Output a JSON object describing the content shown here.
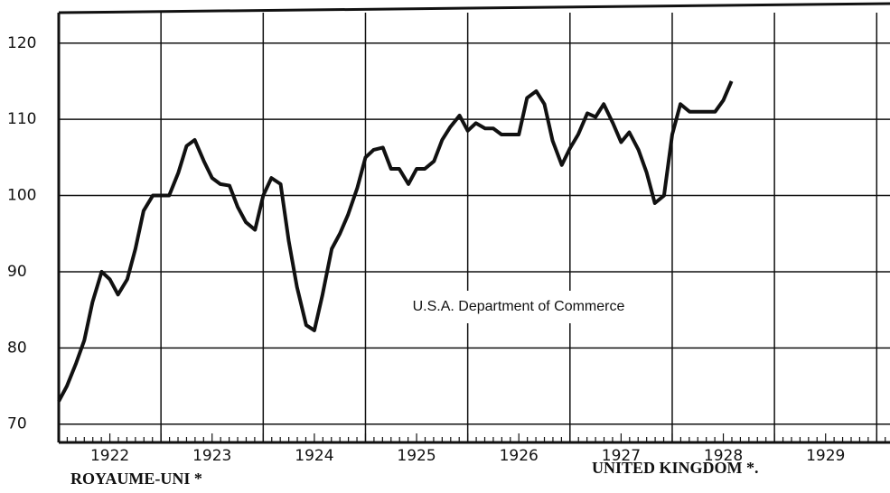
{
  "chart_data": {
    "type": "line",
    "x": [
      1922.0,
      1922.08,
      1922.17,
      1922.25,
      1922.33,
      1922.42,
      1922.5,
      1922.58,
      1922.67,
      1922.75,
      1922.83,
      1922.92,
      1923.0,
      1923.08,
      1923.17,
      1923.25,
      1923.33,
      1923.42,
      1923.5,
      1923.58,
      1923.67,
      1923.75,
      1923.83,
      1923.92,
      1924.0,
      1924.08,
      1924.17,
      1924.25,
      1924.33,
      1924.42,
      1924.5,
      1924.58,
      1924.67,
      1924.75,
      1924.83,
      1924.92,
      1925.0,
      1925.08,
      1925.17,
      1925.25,
      1925.33,
      1925.42,
      1925.5,
      1925.58,
      1925.67,
      1925.75,
      1925.83,
      1925.92,
      1926.0,
      1926.08,
      1926.17,
      1926.25,
      1926.33,
      1926.42,
      1926.5,
      1926.58,
      1926.67,
      1926.75,
      1926.83,
      1926.92,
      1927.0,
      1927.08,
      1927.17,
      1927.25,
      1927.33,
      1927.42,
      1927.5,
      1927.58,
      1927.67,
      1927.75,
      1927.83,
      1927.92,
      1928.0,
      1928.08,
      1928.17,
      1928.25,
      1928.33,
      1928.42,
      1928.5,
      1928.58
    ],
    "series": [
      {
        "color": "#111111",
        "values": [
          73,
          75,
          78,
          81,
          86,
          90,
          89,
          87,
          89,
          93,
          98,
          100,
          100,
          100,
          103,
          106.5,
          107.3,
          104.5,
          102.3,
          101.5,
          101.3,
          98.5,
          96.5,
          95.5,
          100,
          102.3,
          101.5,
          94,
          88,
          83,
          82.3,
          87,
          93,
          95,
          97.5,
          101,
          105,
          106,
          106.3,
          103.5,
          103.5,
          101.5,
          103.5,
          103.5,
          104.5,
          107.3,
          109,
          110.5,
          108.5,
          109.5,
          108.8,
          108.8,
          108,
          108,
          108,
          112.8,
          113.7,
          112,
          107.2,
          104,
          106.2,
          108,
          110.8,
          110.3,
          112,
          109.5,
          107,
          108.3,
          106,
          103,
          99,
          100,
          108,
          112,
          111,
          111,
          111,
          111,
          112.5,
          115
        ]
      }
    ],
    "xlim": [
      1922,
      1930.13
    ],
    "xticks": [
      {
        "value": 1922.5,
        "label": "1922"
      },
      {
        "value": 1923.5,
        "label": "1923"
      },
      {
        "value": 1924.5,
        "label": "1924"
      },
      {
        "value": 1925.5,
        "label": "1925"
      },
      {
        "value": 1926.5,
        "label": "1926"
      },
      {
        "value": 1927.5,
        "label": "1927"
      },
      {
        "value": 1928.5,
        "label": "1928"
      },
      {
        "value": 1929.5,
        "label": "1929"
      }
    ],
    "xgrid": [
      1923,
      1924,
      1925,
      1926,
      1927,
      1928,
      1929,
      1930
    ],
    "ylim": [
      67.6,
      124
    ],
    "yticks": [
      70,
      80,
      90,
      100,
      110,
      120
    ],
    "grid": true,
    "annotation": "U.S.A. Department of Commerce",
    "caption_left": "ROYAUME-UNI *",
    "caption_right": "UNITED KINGDOM *."
  }
}
